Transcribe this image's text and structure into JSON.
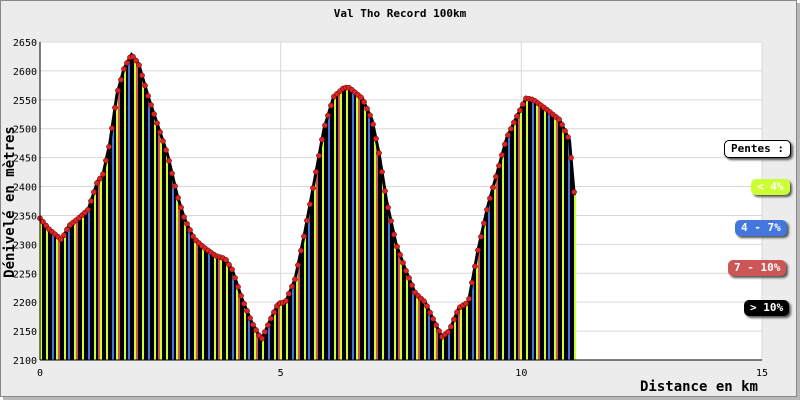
{
  "chart_data": {
    "type": "area",
    "title": "Val Tho Record 100km",
    "xlabel": "Distance en km",
    "ylabel": "Dénivelé en mètres",
    "xlim": [
      0,
      15
    ],
    "ylim": [
      2100,
      2650
    ],
    "xticks": [
      0,
      5,
      10,
      15
    ],
    "yticks": [
      2100,
      2150,
      2200,
      2250,
      2300,
      2350,
      2400,
      2450,
      2500,
      2550,
      2600,
      2650
    ],
    "grid": true,
    "profile": {
      "x": [
        0,
        0.2,
        0.45,
        0.6,
        0.8,
        1.0,
        1.2,
        1.3,
        1.45,
        1.6,
        1.75,
        1.9,
        2.05,
        2.25,
        2.45,
        2.65,
        2.85,
        3.0,
        3.2,
        3.4,
        3.65,
        3.85,
        4.0,
        4.2,
        4.4,
        4.6,
        4.8,
        4.95,
        5.1,
        5.3,
        5.5,
        5.7,
        5.9,
        6.1,
        6.3,
        6.4,
        6.5,
        6.7,
        6.9,
        7.05,
        7.2,
        7.4,
        7.6,
        7.8,
        8.0,
        8.2,
        8.35,
        8.5,
        8.7,
        8.9,
        9.1,
        9.3,
        9.5,
        9.7,
        9.9,
        10.1,
        10.25,
        10.5,
        10.8,
        11.0,
        11.1
      ],
      "y": [
        2345,
        2325,
        2308,
        2332,
        2345,
        2360,
        2410,
        2418,
        2475,
        2560,
        2605,
        2628,
        2612,
        2555,
        2505,
        2455,
        2385,
        2345,
        2310,
        2295,
        2280,
        2275,
        2255,
        2205,
        2165,
        2135,
        2172,
        2198,
        2200,
        2240,
        2320,
        2410,
        2500,
        2555,
        2570,
        2572,
        2566,
        2552,
        2515,
        2455,
        2375,
        2300,
        2255,
        2215,
        2200,
        2165,
        2140,
        2150,
        2190,
        2200,
        2290,
        2365,
        2425,
        2485,
        2520,
        2553,
        2550,
        2535,
        2515,
        2480,
        2385
      ]
    },
    "slope_colors": [
      "#ccff33",
      "#4477dd",
      "#cc5555",
      "#000000"
    ],
    "stripe_pattern": [
      0,
      3,
      3,
      0,
      3,
      3,
      1,
      3,
      0,
      2,
      3,
      3,
      0,
      3,
      1,
      3,
      3,
      0,
      2,
      3,
      3,
      0,
      3,
      3,
      1,
      3,
      3,
      0,
      3,
      2
    ],
    "point_color": "#dd2222",
    "legend": {
      "title": "Pentes :",
      "items": [
        {
          "label": "< 4%",
          "color": "#ccff33",
          "text_color": "#ffffff"
        },
        {
          "label": "4 - 7%",
          "color": "#4477dd",
          "text_color": "#ffffff"
        },
        {
          "label": "7 - 10%",
          "color": "#cc5555",
          "text_color": "#ffffff"
        },
        {
          "label": "> 10%",
          "color": "#000000",
          "text_color": "#ffffff"
        }
      ]
    }
  }
}
